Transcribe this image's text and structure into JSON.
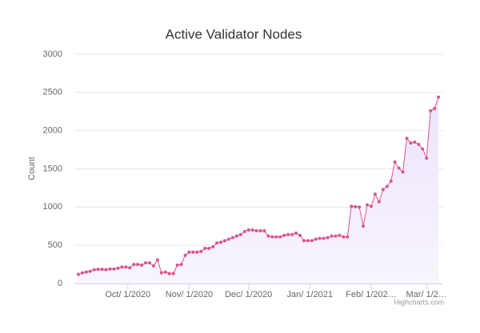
{
  "chart_data": {
    "type": "area",
    "title": "Active Validator Nodes",
    "y_label": "Count",
    "credits": "Highcharts.com",
    "x": [
      -25,
      -23,
      -21,
      -19,
      -17,
      -15,
      -13,
      -11,
      -9,
      -7,
      -5,
      -3,
      -1,
      1,
      3,
      5,
      7,
      9,
      11,
      13,
      15,
      17,
      19,
      21,
      23,
      25,
      27,
      29,
      31,
      33,
      35,
      37,
      39,
      41,
      43,
      45,
      47,
      49,
      51,
      53,
      55,
      57,
      59,
      61,
      63,
      65,
      67,
      69,
      71,
      73,
      75,
      77,
      79,
      81,
      83,
      85,
      87,
      89,
      91,
      93,
      95,
      97,
      99,
      101,
      103,
      105,
      107,
      109,
      111,
      113,
      115,
      117,
      119,
      121,
      123,
      125,
      127,
      129,
      131,
      133,
      135,
      137,
      139,
      141,
      143,
      145,
      147,
      149,
      151,
      153,
      155,
      157
    ],
    "values": [
      120,
      140,
      150,
      160,
      180,
      185,
      185,
      180,
      190,
      190,
      200,
      215,
      215,
      205,
      250,
      250,
      240,
      270,
      270,
      230,
      310,
      140,
      150,
      130,
      130,
      240,
      250,
      370,
      410,
      410,
      410,
      420,
      460,
      460,
      480,
      530,
      540,
      560,
      580,
      600,
      620,
      640,
      680,
      700,
      700,
      690,
      690,
      690,
      620,
      610,
      610,
      610,
      630,
      640,
      640,
      660,
      630,
      560,
      560,
      560,
      580,
      590,
      590,
      600,
      620,
      620,
      630,
      610,
      610,
      1010,
      1005,
      1000,
      750,
      1030,
      1010,
      1170,
      1070,
      1230,
      1270,
      1340,
      1590,
      1510,
      1460,
      1900,
      1840,
      1850,
      1820,
      1760,
      1640,
      2260,
      2290,
      2440
    ],
    "color": "#d9558f",
    "fill": "#f1ebfb",
    "xlim": [
      -27,
      159
    ],
    "xticks": [
      {
        "value": 0,
        "label": "Oct/ 1/2020"
      },
      {
        "value": 31,
        "label": "Nov/ 1/2020"
      },
      {
        "value": 61,
        "label": "Dec/ 1/2020"
      },
      {
        "value": 92,
        "label": "Jan/ 1/2021"
      },
      {
        "value": 123,
        "label": "Feb/ 1/202…"
      },
      {
        "value": 151,
        "label": "Mar/ 1/2…"
      }
    ],
    "ylim": [
      0,
      3000
    ],
    "yticks": [
      0,
      500,
      1000,
      1500,
      2000,
      2500,
      3000
    ],
    "grid": true
  }
}
